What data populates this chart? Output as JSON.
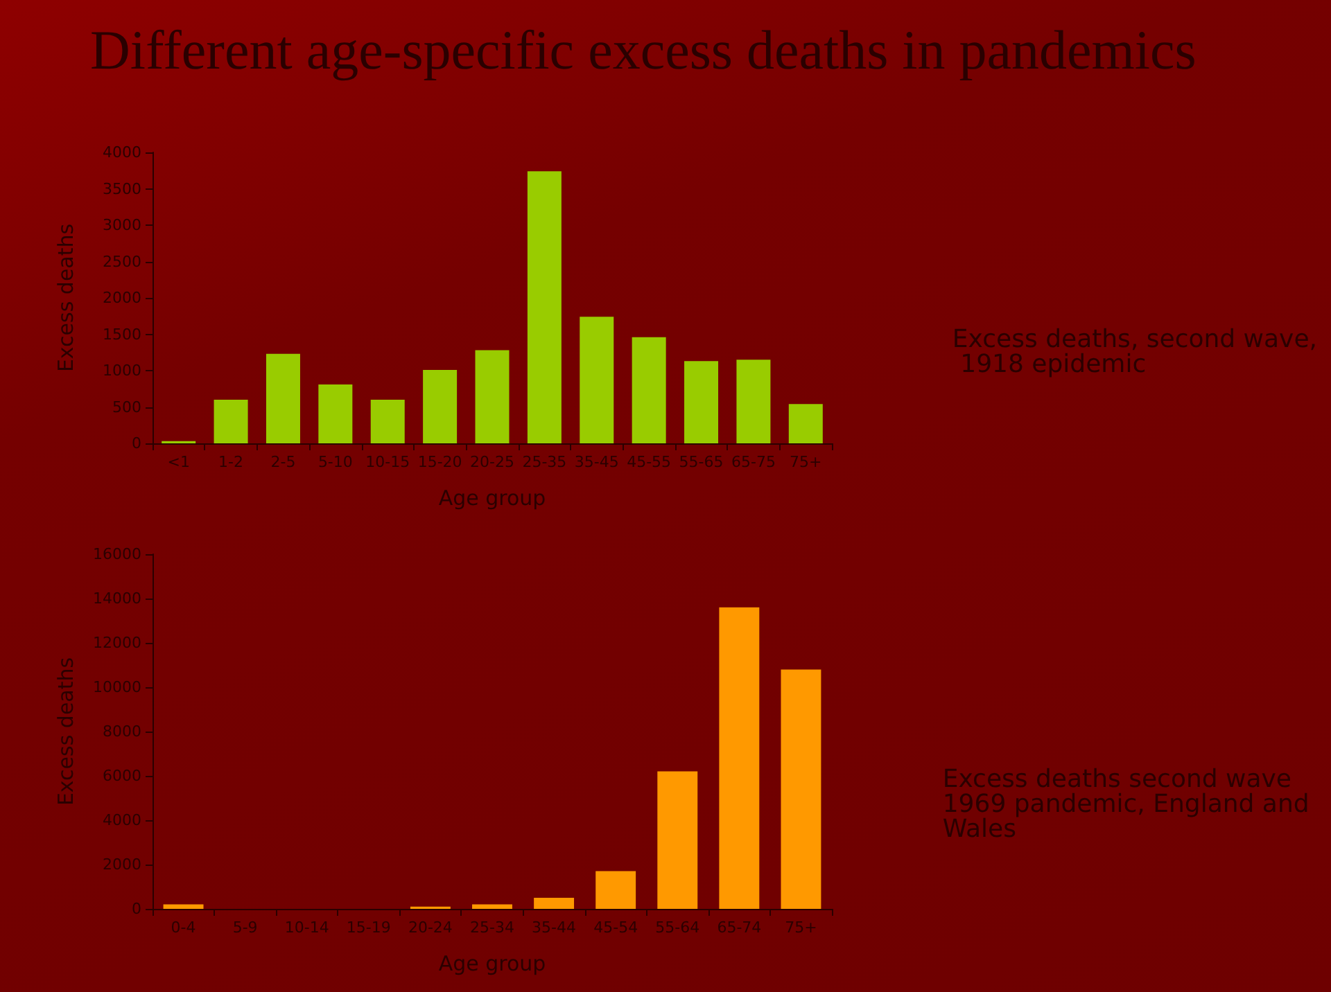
{
  "chart_data": [
    {
      "type": "bar",
      "title": "Different age-specific excess deaths in pandemics",
      "xlabel": "Age group",
      "ylabel": "Excess deaths",
      "annotations": [
        "Excess deaths, second wave, 1918 epidemic"
      ],
      "categories": [
        "<1",
        "1-2",
        "2-5",
        "5-10",
        "10-15",
        "15-20",
        "20-25",
        "25-35",
        "35-45",
        "45-55",
        "55-65",
        "65-75",
        "75+"
      ],
      "values": [
        30,
        600,
        1230,
        810,
        600,
        1010,
        1280,
        3740,
        1740,
        1460,
        1130,
        1150,
        540
      ],
      "color": "#99cc00",
      "ylim": [
        0,
        4000
      ],
      "yticks": [
        0,
        500,
        1000,
        1500,
        2000,
        2500,
        3000,
        3500,
        4000
      ]
    },
    {
      "type": "bar",
      "xlabel": "Age group",
      "ylabel": "Excess deaths",
      "annotations": [
        "Excess deaths second wave 1969 pandemic, England and Wales"
      ],
      "categories": [
        "0-4",
        "5-9",
        "10-14",
        "15-19",
        "20-24",
        "25-34",
        "35-44",
        "45-54",
        "55-64",
        "65-74",
        "75+"
      ],
      "values": [
        200,
        0,
        0,
        0,
        100,
        200,
        500,
        1700,
        6200,
        13600,
        10800
      ],
      "color": "#ff9900",
      "ylim": [
        0,
        16000
      ],
      "yticks": [
        0,
        2000,
        4000,
        6000,
        8000,
        10000,
        12000,
        14000,
        16000
      ]
    }
  ]
}
